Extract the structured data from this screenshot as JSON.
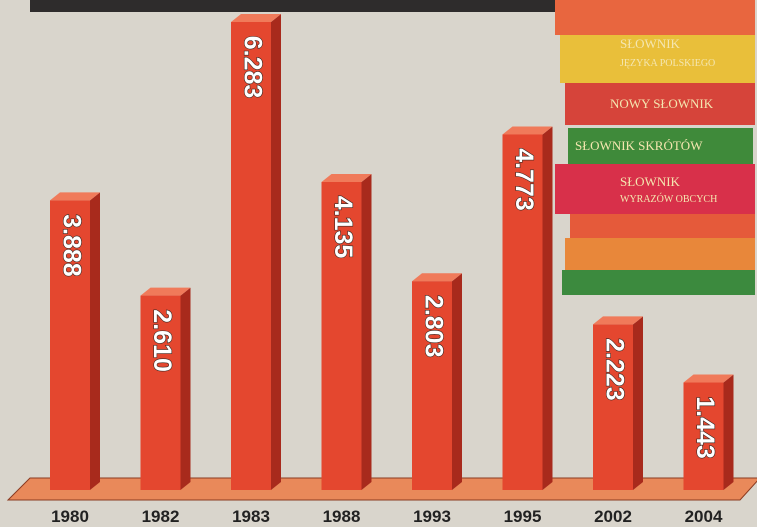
{
  "chart_data": {
    "type": "bar",
    "categories": [
      "1980",
      "1982",
      "1983",
      "1988",
      "1993",
      "1995",
      "2002",
      "2004"
    ],
    "values": [
      3.888,
      2.61,
      6.283,
      4.135,
      2.803,
      4.773,
      2.223,
      1.443
    ],
    "value_labels": [
      "3.888",
      "2.610",
      "6.283",
      "4.135",
      "2.803",
      "4.773",
      "2.223",
      "1.443"
    ],
    "color": "#e4472f"
  },
  "book_titles": [
    "SŁOWNIK",
    "JĘZYKA POLSKIEGO",
    "NOWY SŁOWNIK",
    "SŁOWNIK SKRÓTÓW",
    "SŁOWNIK",
    "WYRAZÓW OBCYCH"
  ]
}
